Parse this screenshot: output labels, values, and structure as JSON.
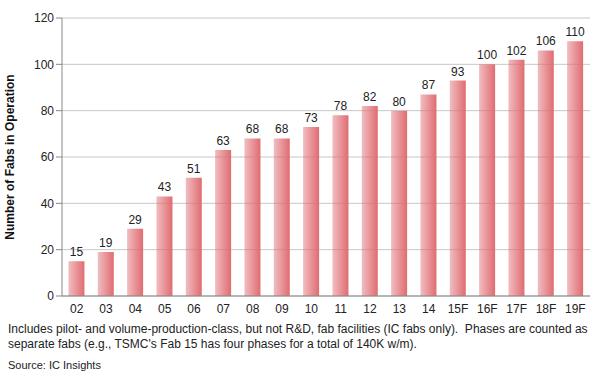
{
  "chart_data": {
    "type": "bar",
    "y_label": "Number of Fabs in Operation",
    "categories": [
      "02",
      "03",
      "04",
      "05",
      "06",
      "07",
      "08",
      "09",
      "10",
      "11",
      "12",
      "13",
      "14",
      "15F",
      "16F",
      "17F",
      "18F",
      "19F"
    ],
    "values": [
      15,
      19,
      29,
      43,
      51,
      63,
      68,
      68,
      73,
      78,
      82,
      80,
      87,
      93,
      100,
      102,
      106,
      110
    ],
    "color": "#e06c72",
    "ylim": [
      0,
      120
    ],
    "yticks": [
      0,
      20,
      40,
      60,
      80,
      100,
      120
    ],
    "grid": true,
    "data_labels": true,
    "annotations": [
      "Includes pilot- and volume-production-class, but not R&D, fab facilities (IC fabs only).  Phases are counted as separate fabs (e.g., TSMC's Fab 15 has four phases for a total of 140K w/m).",
      "Source: IC Insights"
    ]
  }
}
